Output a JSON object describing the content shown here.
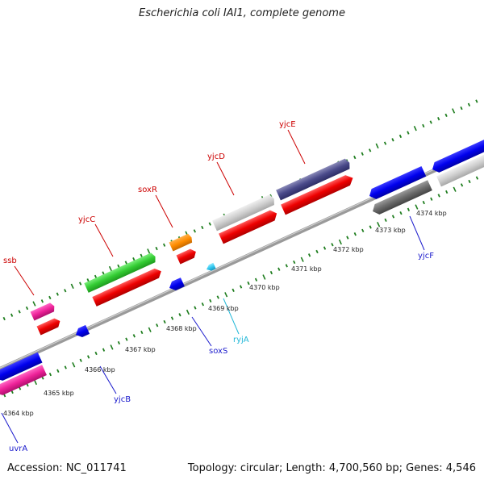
{
  "title": "Escherichia coli IAI1, complete genome",
  "footer": {
    "accession": "Accession: NC_011741",
    "summary": "Topology: circular; Length: 4,700,560 bp; Genes: 4,546"
  },
  "colors": {
    "backbone": "#8a8a8a",
    "ticks": "#1e7d1e",
    "label_red": "#cc0000",
    "label_blue": "#1a1acc",
    "label_cyan": "#22b8d8",
    "tick_label": "#222222"
  },
  "scale_labels": [
    "4364 kbp",
    "4365 kbp",
    "4366 kbp",
    "4367 kbp",
    "4368 kbp",
    "4369 kbp",
    "4370 kbp",
    "4371 kbp",
    "4372 kbp",
    "4373 kbp",
    "4374 kbp"
  ],
  "genes": [
    {
      "name": "ssb",
      "color": "red"
    },
    {
      "name": "yjcC",
      "color": "red"
    },
    {
      "name": "soxR",
      "color": "red"
    },
    {
      "name": "yjcD",
      "color": "red"
    },
    {
      "name": "yjcE",
      "color": "red"
    },
    {
      "name": "uvrA",
      "color": "blue"
    },
    {
      "name": "yjcB",
      "color": "blue"
    },
    {
      "name": "soxS",
      "color": "blue"
    },
    {
      "name": "ryjA",
      "color": "cyan"
    },
    {
      "name": "yjcF",
      "color": "blue"
    }
  ]
}
